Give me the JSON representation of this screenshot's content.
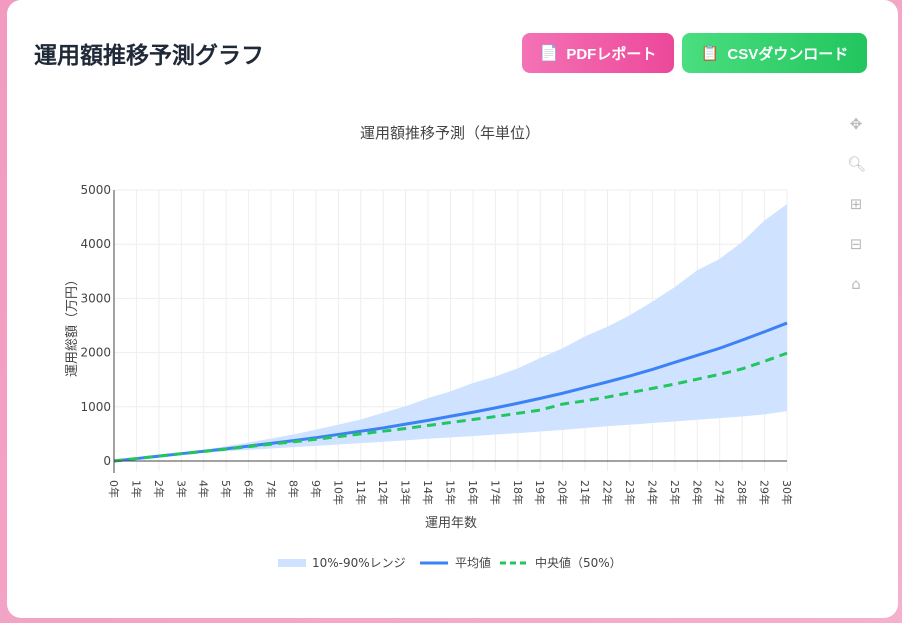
{
  "header": {
    "title": "運用額推移予測グラフ",
    "pdf_label": "PDFレポート",
    "csv_label": "CSVダウンロード",
    "pdf_icon": "document-icon",
    "csv_icon": "clipboard-icon"
  },
  "modebar": [
    "pan-icon",
    "zoom-icon",
    "zoom-in-icon",
    "zoom-out-icon",
    "home-icon"
  ],
  "chart_data": {
    "type": "line",
    "title": "運用額推移予測（年単位）",
    "xlabel": "運用年数",
    "ylabel": "運用総額（万円）",
    "ylim": [
      0,
      5000
    ],
    "yticks": [
      0,
      1000,
      2000,
      3000,
      4000,
      5000
    ],
    "x": [
      "0年",
      "1年",
      "2年",
      "3年",
      "4年",
      "5年",
      "6年",
      "7年",
      "8年",
      "9年",
      "10年",
      "11年",
      "12年",
      "13年",
      "14年",
      "15年",
      "16年",
      "17年",
      "18年",
      "19年",
      "20年",
      "21年",
      "22年",
      "23年",
      "24年",
      "25年",
      "26年",
      "27年",
      "28年",
      "29年",
      "30年"
    ],
    "grid": true,
    "legend_position": "bottom-center",
    "band": {
      "name": "10%-90%レンジ",
      "color": "#cfe2ff",
      "lower": [
        0,
        40,
        80,
        115,
        150,
        180,
        205,
        230,
        255,
        280,
        305,
        330,
        355,
        380,
        410,
        435,
        460,
        490,
        515,
        545,
        575,
        610,
        640,
        670,
        700,
        730,
        760,
        790,
        820,
        860,
        920
      ],
      "upper": [
        0,
        45,
        90,
        140,
        200,
        275,
        340,
        415,
        490,
        580,
        670,
        765,
        890,
        1010,
        1160,
        1285,
        1440,
        1560,
        1710,
        1900,
        2080,
        2300,
        2480,
        2690,
        2940,
        3210,
        3520,
        3730,
        4040,
        4440,
        4740
      ]
    },
    "series": [
      {
        "name": "平均値",
        "color": "#3b82f6",
        "dash": "solid",
        "values": [
          0,
          45,
          90,
          135,
          180,
          225,
          275,
          325,
          375,
          430,
          490,
          550,
          610,
          680,
          750,
          825,
          900,
          980,
          1065,
          1155,
          1250,
          1355,
          1460,
          1570,
          1690,
          1820,
          1950,
          2080,
          2230,
          2385,
          2545
        ]
      },
      {
        "name": "中央値（50%）",
        "color": "#22c55e",
        "dash": "dashed",
        "values": [
          0,
          45,
          90,
          135,
          175,
          220,
          265,
          310,
          355,
          400,
          450,
          500,
          550,
          600,
          655,
          710,
          765,
          820,
          880,
          940,
          1050,
          1110,
          1180,
          1260,
          1340,
          1420,
          1510,
          1600,
          1700,
          1840,
          1990
        ]
      }
    ]
  }
}
